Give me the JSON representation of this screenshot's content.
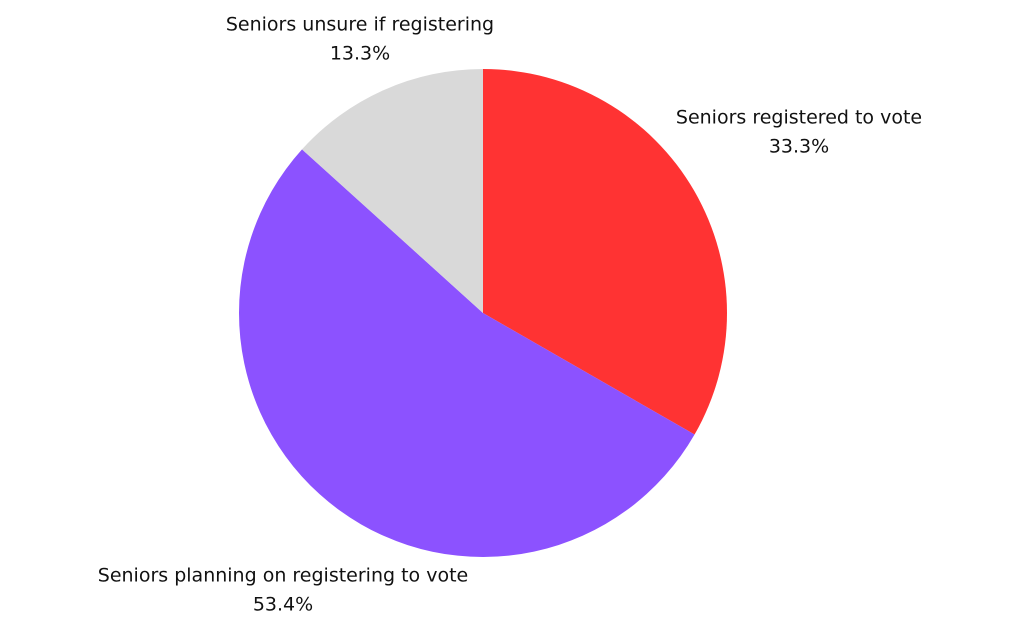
{
  "chart_data": {
    "type": "pie",
    "categories": [
      "Seniors registered to vote",
      "Seniors planning on registering to vote",
      "Seniors unsure if registering"
    ],
    "values": [
      33.3,
      53.4,
      13.3
    ],
    "value_labels": [
      "33.3%",
      "53.4%",
      "13.3%"
    ],
    "colors": [
      "#ff3333",
      "#8c52ff",
      "#d9d9d9"
    ]
  }
}
